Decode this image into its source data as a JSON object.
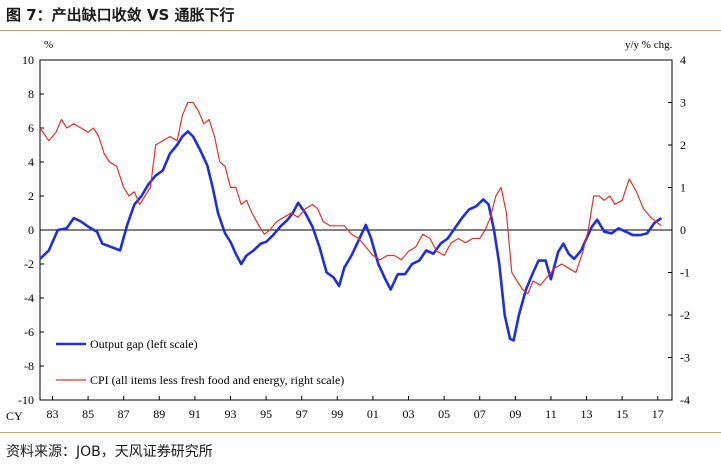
{
  "title": "图 7：产出缺口收敛 VS 通胀下行",
  "source": "资料来源：JOB，天风证券研究所",
  "chart_data": {
    "type": "line",
    "left_unit": "%",
    "right_unit": "y/y % chg.",
    "x_axis_prefix": "CY",
    "x_range": [
      1982.3,
      2017.8
    ],
    "y_left_range": [
      -10,
      10
    ],
    "y_right_range": [
      -4,
      4
    ],
    "y_left_ticks": [
      -10,
      -8,
      -6,
      -4,
      -2,
      0,
      2,
      4,
      6,
      8,
      10
    ],
    "y_right_ticks": [
      -4,
      -3,
      -2,
      -1,
      0,
      1,
      2,
      3,
      4
    ],
    "x_ticks": [
      {
        "year": 1983,
        "label": "83"
      },
      {
        "year": 1985,
        "label": "85"
      },
      {
        "year": 1987,
        "label": "87"
      },
      {
        "year": 1989,
        "label": "89"
      },
      {
        "year": 1991,
        "label": "91"
      },
      {
        "year": 1993,
        "label": "93"
      },
      {
        "year": 1995,
        "label": "95"
      },
      {
        "year": 1997,
        "label": "97"
      },
      {
        "year": 1999,
        "label": "99"
      },
      {
        "year": 2001,
        "label": "01"
      },
      {
        "year": 2003,
        "label": "03"
      },
      {
        "year": 2005,
        "label": "05"
      },
      {
        "year": 2007,
        "label": "07"
      },
      {
        "year": 2009,
        "label": "09"
      },
      {
        "year": 2011,
        "label": "11"
      },
      {
        "year": 2013,
        "label": "13"
      },
      {
        "year": 2015,
        "label": "15"
      },
      {
        "year": 2017,
        "label": "17"
      }
    ],
    "legend_placement": "bottom-left",
    "grid": false,
    "series": [
      {
        "name": "Output gap (left scale)",
        "axis": "left",
        "color": "#1f2fd6",
        "points": [
          [
            1982.3,
            -1.7
          ],
          [
            1982.8,
            -1.2
          ],
          [
            1983.3,
            0.0
          ],
          [
            1983.8,
            0.1
          ],
          [
            1984.2,
            0.7
          ],
          [
            1984.6,
            0.5
          ],
          [
            1985.0,
            0.2
          ],
          [
            1985.5,
            -0.1
          ],
          [
            1985.8,
            -0.8
          ],
          [
            1986.3,
            -1.0
          ],
          [
            1986.8,
            -1.2
          ],
          [
            1987.2,
            0.3
          ],
          [
            1987.6,
            1.5
          ],
          [
            1988.0,
            2.0
          ],
          [
            1988.4,
            2.7
          ],
          [
            1988.8,
            3.2
          ],
          [
            1989.2,
            3.5
          ],
          [
            1989.6,
            4.5
          ],
          [
            1990.0,
            5.0
          ],
          [
            1990.3,
            5.5
          ],
          [
            1990.6,
            5.8
          ],
          [
            1990.9,
            5.5
          ],
          [
            1991.3,
            4.7
          ],
          [
            1991.7,
            3.8
          ],
          [
            1992.0,
            2.5
          ],
          [
            1992.3,
            1.0
          ],
          [
            1992.7,
            -0.2
          ],
          [
            1993.0,
            -0.7
          ],
          [
            1993.3,
            -1.4
          ],
          [
            1993.6,
            -2.0
          ],
          [
            1993.9,
            -1.5
          ],
          [
            1994.3,
            -1.2
          ],
          [
            1994.7,
            -0.8
          ],
          [
            1995.0,
            -0.7
          ],
          [
            1995.4,
            -0.3
          ],
          [
            1995.8,
            0.2
          ],
          [
            1996.2,
            0.6
          ],
          [
            1996.5,
            1.0
          ],
          [
            1996.8,
            1.6
          ],
          [
            1997.2,
            1.0
          ],
          [
            1997.6,
            0.2
          ],
          [
            1998.0,
            -1.0
          ],
          [
            1998.4,
            -2.5
          ],
          [
            1998.8,
            -2.8
          ],
          [
            1999.1,
            -3.3
          ],
          [
            1999.4,
            -2.2
          ],
          [
            1999.8,
            -1.5
          ],
          [
            2000.2,
            -0.6
          ],
          [
            2000.6,
            0.3
          ],
          [
            2000.9,
            -0.5
          ],
          [
            2001.3,
            -2.0
          ],
          [
            2001.7,
            -2.9
          ],
          [
            2002.0,
            -3.5
          ],
          [
            2002.4,
            -2.6
          ],
          [
            2002.8,
            -2.6
          ],
          [
            2003.2,
            -2.0
          ],
          [
            2003.6,
            -1.8
          ],
          [
            2004.0,
            -1.2
          ],
          [
            2004.4,
            -1.4
          ],
          [
            2004.8,
            -0.8
          ],
          [
            2005.2,
            -0.5
          ],
          [
            2005.6,
            0.1
          ],
          [
            2006.0,
            0.7
          ],
          [
            2006.4,
            1.2
          ],
          [
            2006.8,
            1.4
          ],
          [
            2007.2,
            1.8
          ],
          [
            2007.5,
            1.5
          ],
          [
            2007.8,
            0.0
          ],
          [
            2008.1,
            -2.0
          ],
          [
            2008.4,
            -5.0
          ],
          [
            2008.7,
            -6.4
          ],
          [
            2008.9,
            -6.5
          ],
          [
            2009.2,
            -5.0
          ],
          [
            2009.6,
            -3.5
          ],
          [
            2010.0,
            -2.5
          ],
          [
            2010.3,
            -1.8
          ],
          [
            2010.7,
            -1.8
          ],
          [
            2011.0,
            -2.9
          ],
          [
            2011.4,
            -1.3
          ],
          [
            2011.7,
            -0.8
          ],
          [
            2012.0,
            -1.4
          ],
          [
            2012.3,
            -1.7
          ],
          [
            2012.7,
            -1.2
          ],
          [
            2013.0,
            -0.5
          ],
          [
            2013.3,
            0.2
          ],
          [
            2013.6,
            0.6
          ],
          [
            2014.0,
            -0.1
          ],
          [
            2014.4,
            -0.2
          ],
          [
            2014.8,
            0.1
          ],
          [
            2015.2,
            -0.1
          ],
          [
            2015.6,
            -0.3
          ],
          [
            2016.0,
            -0.3
          ],
          [
            2016.4,
            -0.2
          ],
          [
            2016.8,
            0.4
          ],
          [
            2017.2,
            0.7
          ]
        ]
      },
      {
        "name": "CPI (all items less fresh food and energy, right scale)",
        "axis": "right",
        "color": "#e8312b",
        "points": [
          [
            1982.3,
            2.4
          ],
          [
            1982.8,
            2.1
          ],
          [
            1983.2,
            2.3
          ],
          [
            1983.5,
            2.6
          ],
          [
            1983.8,
            2.4
          ],
          [
            1984.2,
            2.5
          ],
          [
            1984.6,
            2.4
          ],
          [
            1985.0,
            2.3
          ],
          [
            1985.3,
            2.4
          ],
          [
            1985.6,
            2.2
          ],
          [
            1985.9,
            1.8
          ],
          [
            1986.2,
            1.6
          ],
          [
            1986.6,
            1.5
          ],
          [
            1987.0,
            1.0
          ],
          [
            1987.3,
            0.8
          ],
          [
            1987.6,
            0.9
          ],
          [
            1987.9,
            0.6
          ],
          [
            1988.2,
            0.8
          ],
          [
            1988.5,
            1.0
          ],
          [
            1988.8,
            2.0
          ],
          [
            1989.2,
            2.1
          ],
          [
            1989.6,
            2.2
          ],
          [
            1990.0,
            2.1
          ],
          [
            1990.3,
            2.7
          ],
          [
            1990.6,
            3.0
          ],
          [
            1990.9,
            3.0
          ],
          [
            1991.2,
            2.8
          ],
          [
            1991.5,
            2.5
          ],
          [
            1991.8,
            2.6
          ],
          [
            1992.1,
            2.2
          ],
          [
            1992.4,
            1.6
          ],
          [
            1992.7,
            1.5
          ],
          [
            1993.0,
            1.0
          ],
          [
            1993.3,
            1.0
          ],
          [
            1993.6,
            0.6
          ],
          [
            1993.9,
            0.7
          ],
          [
            1994.2,
            0.4
          ],
          [
            1994.6,
            0.1
          ],
          [
            1994.9,
            -0.1
          ],
          [
            1995.2,
            0.0
          ],
          [
            1995.6,
            0.2
          ],
          [
            1996.0,
            0.3
          ],
          [
            1996.4,
            0.4
          ],
          [
            1996.8,
            0.3
          ],
          [
            1997.2,
            0.5
          ],
          [
            1997.6,
            0.6
          ],
          [
            1997.9,
            0.5
          ],
          [
            1998.2,
            0.2
          ],
          [
            1998.6,
            0.1
          ],
          [
            1999.0,
            0.1
          ],
          [
            1999.4,
            0.1
          ],
          [
            1999.8,
            -0.1
          ],
          [
            2000.2,
            -0.2
          ],
          [
            2000.6,
            -0.4
          ],
          [
            2001.0,
            -0.6
          ],
          [
            2001.4,
            -0.7
          ],
          [
            2001.8,
            -0.6
          ],
          [
            2002.2,
            -0.6
          ],
          [
            2002.6,
            -0.7
          ],
          [
            2003.0,
            -0.5
          ],
          [
            2003.4,
            -0.4
          ],
          [
            2003.8,
            -0.1
          ],
          [
            2004.2,
            -0.2
          ],
          [
            2004.6,
            -0.5
          ],
          [
            2005.0,
            -0.6
          ],
          [
            2005.4,
            -0.3
          ],
          [
            2005.8,
            -0.2
          ],
          [
            2006.2,
            -0.3
          ],
          [
            2006.6,
            -0.2
          ],
          [
            2007.0,
            -0.2
          ],
          [
            2007.3,
            0.0
          ],
          [
            2007.6,
            0.3
          ],
          [
            2007.9,
            0.8
          ],
          [
            2008.2,
            1.0
          ],
          [
            2008.5,
            0.4
          ],
          [
            2008.8,
            -1.0
          ],
          [
            2009.1,
            -1.2
          ],
          [
            2009.4,
            -1.4
          ],
          [
            2009.7,
            -1.5
          ],
          [
            2010.0,
            -1.2
          ],
          [
            2010.4,
            -1.3
          ],
          [
            2010.8,
            -1.1
          ],
          [
            2011.2,
            -0.9
          ],
          [
            2011.6,
            -0.8
          ],
          [
            2012.0,
            -0.9
          ],
          [
            2012.4,
            -1.0
          ],
          [
            2012.8,
            -0.5
          ],
          [
            2013.1,
            0.0
          ],
          [
            2013.4,
            0.8
          ],
          [
            2013.7,
            0.8
          ],
          [
            2014.0,
            0.7
          ],
          [
            2014.3,
            0.8
          ],
          [
            2014.6,
            0.6
          ],
          [
            2015.0,
            0.7
          ],
          [
            2015.4,
            1.2
          ],
          [
            2015.8,
            0.9
          ],
          [
            2016.2,
            0.5
          ],
          [
            2016.6,
            0.3
          ],
          [
            2016.9,
            0.2
          ],
          [
            2017.2,
            0.1
          ]
        ]
      }
    ]
  }
}
